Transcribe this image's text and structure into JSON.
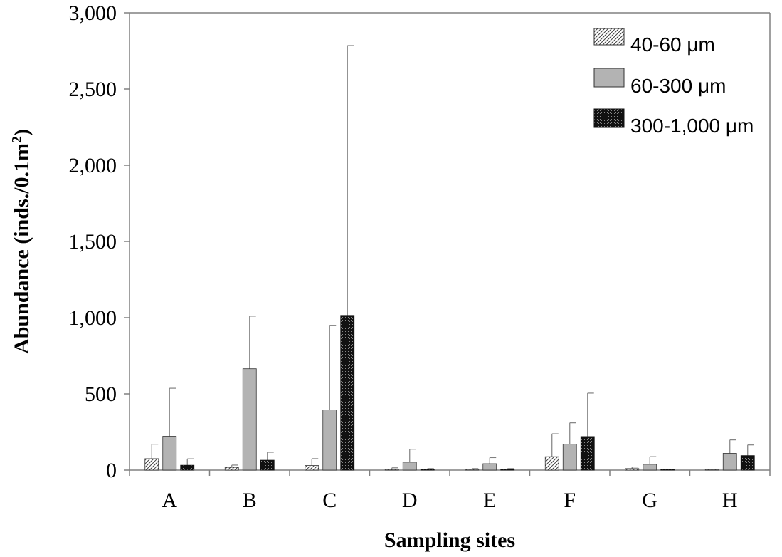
{
  "chart_data": {
    "type": "bar",
    "title": "",
    "xlabel": "Sampling sites",
    "ylabel": "Abundance (inds./0.1m",
    "ylabel_superscript": "2",
    "ylabel_suffix": ")",
    "ylim": [
      0,
      3000
    ],
    "yticks": [
      0,
      500,
      1000,
      1500,
      2000,
      2500,
      3000
    ],
    "ytick_labels": [
      "0",
      "500",
      "1,000",
      "1,500",
      "2,000",
      "2,500",
      "3,000"
    ],
    "categories": [
      "A",
      "B",
      "C",
      "D",
      "E",
      "F",
      "G",
      "H"
    ],
    "legend_position": "top-right",
    "grid": false,
    "series": [
      {
        "name": "40-60 μm",
        "pattern": "diagonal-hatch",
        "values": [
          75,
          18,
          30,
          5,
          5,
          88,
          10,
          2
        ],
        "errors": [
          95,
          15,
          45,
          10,
          5,
          150,
          10,
          2
        ]
      },
      {
        "name": "60-300 μm",
        "pattern": "solid-gray",
        "values": [
          222,
          665,
          395,
          52,
          42,
          170,
          38,
          110
        ],
        "errors": [
          315,
          345,
          555,
          85,
          40,
          140,
          50,
          88
        ]
      },
      {
        "name": "300-1,000 μm",
        "pattern": "dark-dots",
        "values": [
          32,
          65,
          1015,
          5,
          5,
          220,
          3,
          95
        ],
        "errors": [
          42,
          52,
          1770,
          5,
          5,
          285,
          2,
          70
        ]
      }
    ]
  },
  "colors": {
    "solid_gray": "#b3b3b3",
    "dark_fill": "#1a1a1a",
    "axis": "#808080",
    "bar_edge": "#333333"
  }
}
